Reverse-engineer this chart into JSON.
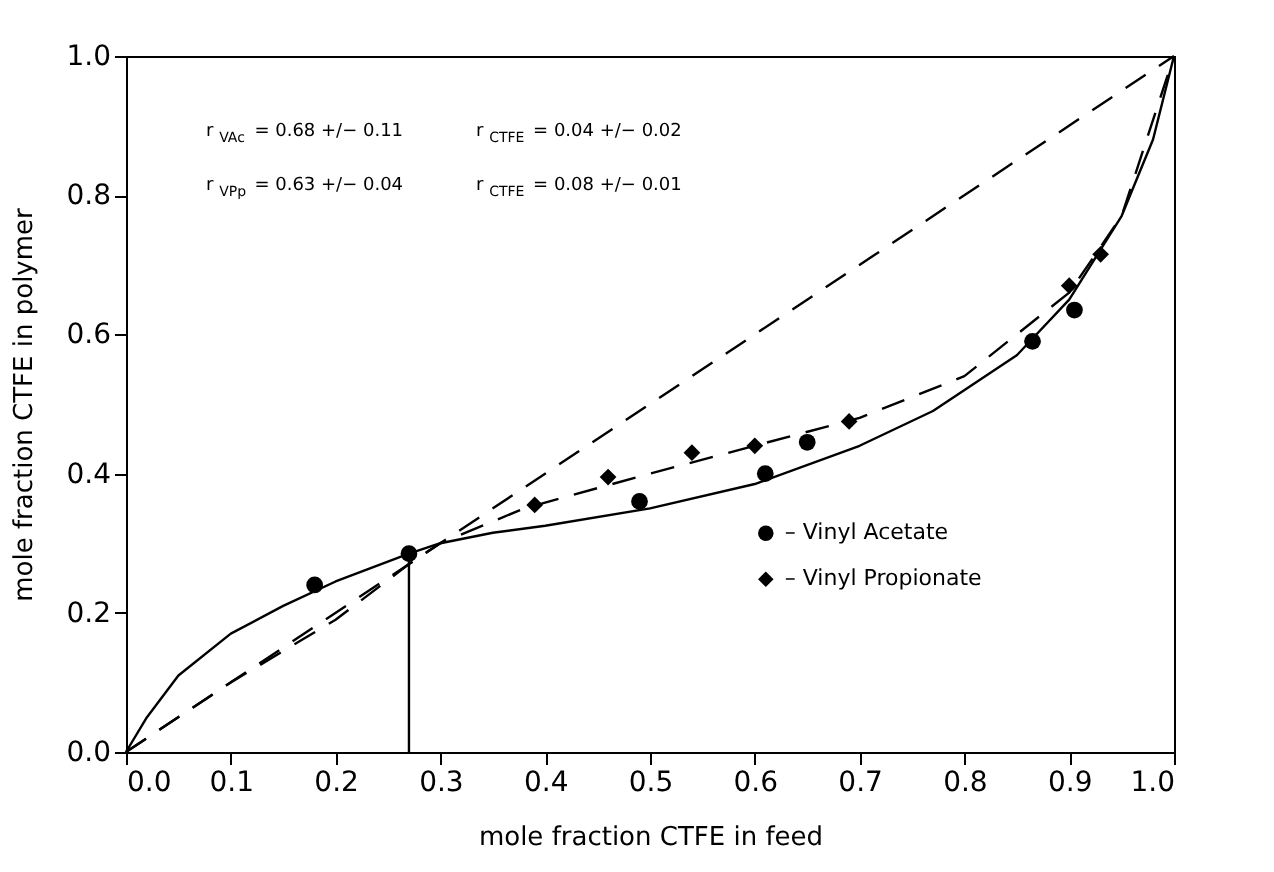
{
  "chart_data": {
    "type": "scatter",
    "xlabel": "mole fraction CTFE in feed",
    "ylabel": "mole fraction CTFE in polymer",
    "xlim": [
      0,
      1
    ],
    "ylim": [
      0,
      1
    ],
    "xticks": [
      {
        "value": 0,
        "label": "0.0"
      },
      0.1,
      0.2,
      0.3,
      0.4,
      0.5,
      0.6,
      0.7,
      0.8,
      0.9,
      {
        "value": 1,
        "label": "1.0"
      }
    ],
    "yticks": [
      {
        "value": 0,
        "label": "0.0"
      },
      0.2,
      0.4,
      0.6,
      0.8,
      {
        "value": 1,
        "label": "1.0"
      }
    ],
    "grid": false,
    "legend": "right",
    "marker": "circle",
    "annotations": [
      "r$_{VAc}$ = 0.68 +/− 0.11",
      "r$_{CTFE}$ = 0.04 +/− 0.02",
      "r$_{VPp}$ = 0.63 +/− 0.04",
      "r$_{CTFE}$ = 0.08 +/− 0.01"
    ],
    "series": [
      {
        "type": "line",
        "color": "#000000",
        "line_style": "dashed",
        "marker": "none",
        "x": [
          0,
          1
        ],
        "values": [
          0,
          1
        ]
      },
      {
        "type": "line",
        "color": "#000000",
        "line_style": "solid",
        "marker": "none",
        "x": [
          0,
          0.02,
          0.05,
          0.1,
          0.15,
          0.2,
          0.27,
          0.3,
          0.35,
          0.4,
          0.5,
          0.6,
          0.7,
          0.77,
          0.85,
          0.9,
          0.95,
          0.98,
          1
        ],
        "values": [
          0,
          0.05,
          0.11,
          0.17,
          0.21,
          0.245,
          0.285,
          0.3,
          0.315,
          0.325,
          0.35,
          0.385,
          0.44,
          0.49,
          0.57,
          0.65,
          0.77,
          0.88,
          1
        ]
      },
      {
        "type": "line",
        "color": "#000000",
        "line_style": "dashed",
        "marker": "none",
        "x": [
          0,
          0.1,
          0.2,
          0.27,
          0.3,
          0.38,
          0.5,
          0.6,
          0.7,
          0.8,
          0.9,
          0.95,
          1
        ],
        "values": [
          0,
          0.1,
          0.19,
          0.27,
          0.3,
          0.35,
          0.4,
          0.44,
          0.48,
          0.54,
          0.66,
          0.77,
          1
        ]
      },
      {
        "type": "line",
        "color": "#000000",
        "line_style": "solid",
        "marker": "none",
        "x": [
          0.27,
          0.27
        ],
        "values": [
          0.285,
          0
        ]
      },
      {
        "name": "– Vinyl Acetate",
        "color": "#000000",
        "x": [
          0.18,
          0.27,
          0.49,
          0.61,
          0.65,
          0.865,
          0.905
        ],
        "values": [
          0.24,
          0.285,
          0.36,
          0.4,
          0.445,
          0.59,
          0.635
        ]
      },
      {
        "name": "– Vinyl Propionate",
        "color": "#000000",
        "marker": "diamond",
        "x": [
          0.39,
          0.46,
          0.54,
          0.6,
          0.69,
          0.9,
          0.93
        ],
        "values": [
          0.355,
          0.395,
          0.43,
          0.44,
          0.475,
          0.67,
          0.715
        ]
      }
    ]
  }
}
